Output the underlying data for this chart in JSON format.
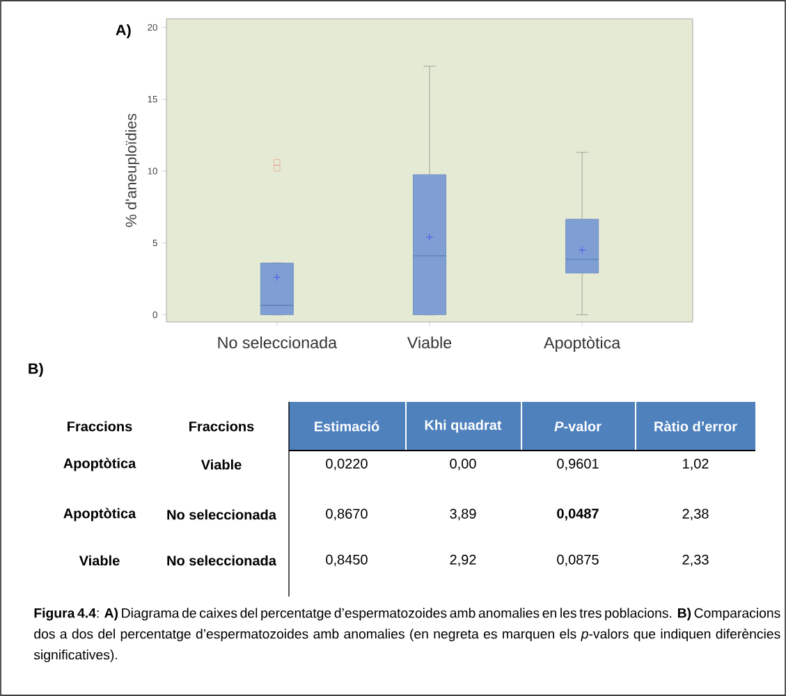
{
  "chart_data": [
    {
      "type": "box",
      "title": "A)",
      "ylabel": "% d'aneuploïdies",
      "categories": [
        "No seleccionada",
        "Viable",
        "Apoptòtica"
      ],
      "color": "#7f9fd4",
      "ylim": [
        -0.5,
        20.6
      ],
      "yticks": [
        0,
        5,
        10,
        15,
        20
      ],
      "boxes": [
        {
          "low": 0,
          "q1": 0,
          "median": 0.65,
          "q3": 3.6,
          "high": 3.6,
          "mean": 2.6,
          "outliers": [
            10.2,
            10.6
          ]
        },
        {
          "low": 0,
          "q1": 0,
          "median": 4.1,
          "q3": 9.75,
          "high": 17.3,
          "mean": 5.4
        },
        {
          "low": 0,
          "q1": 2.9,
          "median": 3.85,
          "q3": 6.65,
          "high": 11.3,
          "mean": 4.5
        }
      ]
    },
    {
      "type": "other",
      "title": "B)",
      "annotations": [
        "Fraccions",
        "Fraccions",
        "Estimació",
        "Khi quadrat",
        "*P*-valor",
        "Ràtio d’error",
        "Apoptòtica",
        "Viable",
        "0,0220",
        "0,00",
        "0,9601",
        "1,02",
        "Apoptòtica",
        "No seleccionada",
        "0,8670",
        "3,89",
        "**0,0487**",
        "2,38",
        "Viable",
        "No seleccionada",
        "0,8450",
        "2,92",
        "0,0875",
        "2,33",
        "**Figura 4.4**: **A)** Diagrama de caixes del percentatge d’espermatozoides amb anomalies en les tres poblacions. **B)** Comparacions dos a dos del percentatge d’espermatozoides amb anomalies (en negreta es marquen els *p*-valors que indiquen diferències significatives)."
      ]
    }
  ]
}
